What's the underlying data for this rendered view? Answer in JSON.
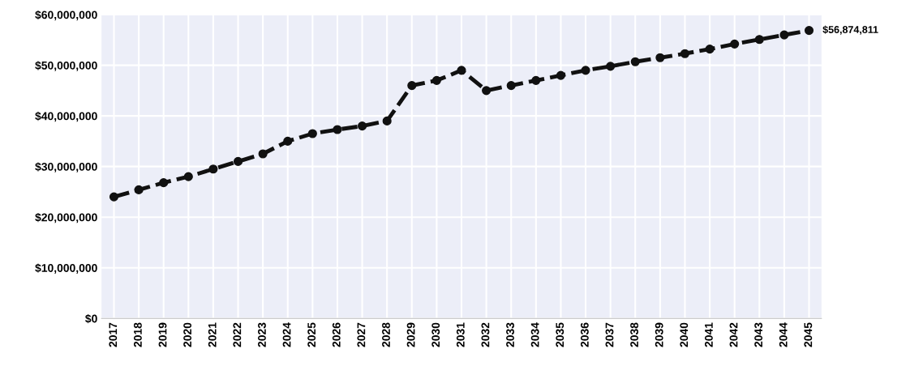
{
  "chart_data": {
    "type": "line",
    "categories": [
      "2017",
      "2018",
      "2019",
      "2020",
      "2021",
      "2022",
      "2023",
      "2024",
      "2025",
      "2026",
      "2027",
      "2028",
      "2029",
      "2030",
      "2031",
      "2032",
      "2033",
      "2034",
      "2035",
      "2036",
      "2037",
      "2038",
      "2039",
      "2040",
      "2041",
      "2042",
      "2043",
      "2044",
      "2045"
    ],
    "series": [
      {
        "color": "#111111",
        "values": [
          24000000,
          25400000,
          26800000,
          28000000,
          29500000,
          31000000,
          32500000,
          35000000,
          36500000,
          37300000,
          38000000,
          39000000,
          46000000,
          47000000,
          49000000,
          45000000,
          46000000,
          47000000,
          48000000,
          49000000,
          49800000,
          50700000,
          51500000,
          52300000,
          53200000,
          54200000,
          55100000,
          56000000,
          56874811
        ],
        "value_labels": [
          null,
          null,
          null,
          null,
          null,
          null,
          null,
          null,
          null,
          null,
          null,
          null,
          null,
          null,
          null,
          null,
          null,
          null,
          null,
          null,
          null,
          null,
          null,
          null,
          null,
          null,
          null,
          null,
          "$56,874,811"
        ]
      }
    ],
    "ylim": [
      0,
      60000000
    ],
    "yticks": [
      {
        "value": 0,
        "label": "$0"
      },
      {
        "value": 10000000,
        "label": "$10,000,000"
      },
      {
        "value": 20000000,
        "label": "$20,000,000"
      },
      {
        "value": 30000000,
        "label": "$30,000,000"
      },
      {
        "value": 40000000,
        "label": "$40,000,000"
      },
      {
        "value": 50000000,
        "label": "$50,000,000"
      },
      {
        "value": 60000000,
        "label": "$60,000,000"
      }
    ],
    "grid": true,
    "marker": "circle",
    "line_style": "dashed"
  }
}
